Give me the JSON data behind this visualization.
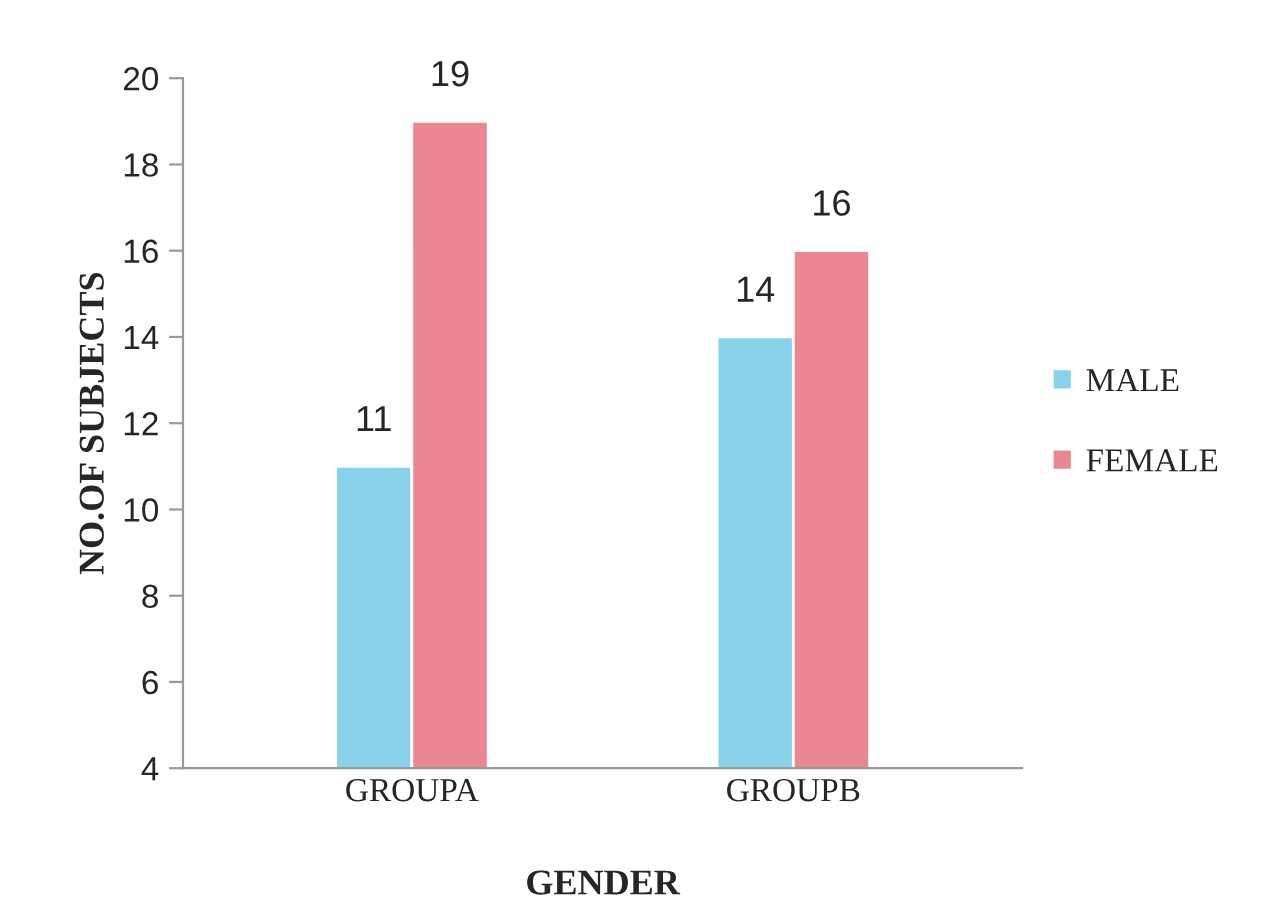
{
  "chart_data": {
    "type": "bar",
    "xlabel": "GENDER",
    "ylabel": "NO.OF SUBJECTS",
    "categories": [
      "GROUPA",
      "GROUPB"
    ],
    "series": [
      {
        "name": "MALE",
        "color": "#89d3ea",
        "values": [
          11,
          14
        ]
      },
      {
        "name": "FEMALE",
        "color": "#eb8791",
        "values": [
          19,
          16
        ]
      }
    ],
    "ylim": [
      4,
      20
    ],
    "yticks": [
      4,
      6,
      8,
      10,
      12,
      14,
      16,
      18,
      20
    ],
    "data_labels": true,
    "legend": "right",
    "grid": false
  }
}
